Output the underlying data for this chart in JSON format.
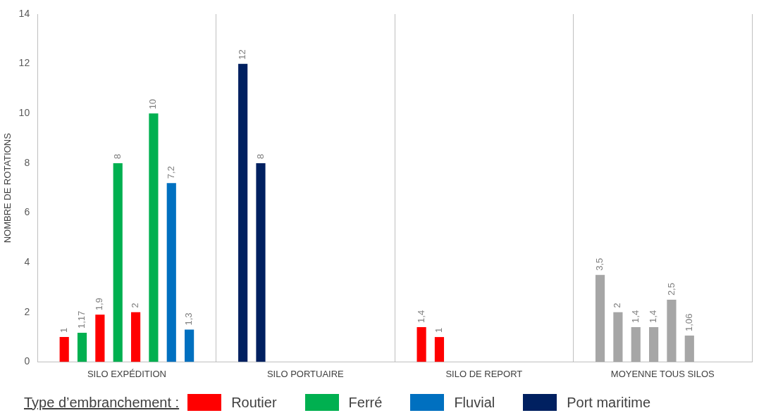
{
  "chart_data": {
    "type": "bar",
    "ylabel": "NOMBRE DE ROTATIONS",
    "legend_title": "Type d’embranchement :",
    "categories": [
      "SILO EXPÉDITION",
      "SILO PORTUAIRE",
      "SILO DE REPORT",
      "MOYENNE TOUS SILOS"
    ],
    "series": [
      {
        "values": [
          1,
          12,
          1.4,
          3.5
        ],
        "colors": [
          "#ff0000",
          "#002060",
          "#ff0000",
          "#a6a6a6"
        ],
        "value_labels": [
          "1",
          "12",
          "1,4",
          "3,5"
        ]
      },
      {
        "values": [
          1.17,
          8,
          1,
          2
        ],
        "colors": [
          "#00b050",
          "#002060",
          "#ff0000",
          "#a6a6a6"
        ],
        "value_labels": [
          "1,17",
          "8",
          "1",
          "2"
        ]
      },
      {
        "values": [
          1.9,
          null,
          null,
          1.4
        ],
        "colors": [
          "#ff0000",
          null,
          null,
          "#a6a6a6"
        ],
        "value_labels": [
          "1,9",
          null,
          null,
          "1,4"
        ]
      },
      {
        "values": [
          8,
          null,
          null,
          1.4
        ],
        "colors": [
          "#00b050",
          null,
          null,
          "#a6a6a6"
        ],
        "value_labels": [
          "8",
          null,
          null,
          "1,4"
        ]
      },
      {
        "values": [
          2,
          null,
          null,
          2.5
        ],
        "colors": [
          "#ff0000",
          null,
          null,
          "#a6a6a6"
        ],
        "value_labels": [
          "2",
          null,
          null,
          "2,5"
        ]
      },
      {
        "values": [
          10,
          null,
          null,
          1.06
        ],
        "colors": [
          "#00b050",
          null,
          null,
          "#a6a6a6"
        ],
        "value_labels": [
          "10",
          null,
          null,
          "1,06"
        ]
      },
      {
        "values": [
          7.2,
          null,
          null,
          null
        ],
        "colors": [
          "#0070c0",
          null,
          null,
          null
        ],
        "value_labels": [
          "7,2",
          null,
          null,
          null
        ]
      },
      {
        "values": [
          1.3,
          null,
          null,
          null
        ],
        "colors": [
          "#0070c0",
          null,
          null,
          null
        ],
        "value_labels": [
          "1,3",
          null,
          null,
          null
        ]
      },
      {
        "name": "Routier",
        "color": "#ff0000",
        "values": [
          null,
          null,
          null,
          null
        ]
      },
      {
        "name": "Ferré",
        "color": "#00b050",
        "values": [
          null,
          null,
          null,
          null
        ]
      },
      {
        "name": "Fluvial",
        "color": "#0070c0",
        "values": [
          null,
          null,
          null,
          null
        ]
      },
      {
        "name": "Port maritime",
        "color": "#002060",
        "values": [
          null,
          null,
          null,
          null
        ]
      }
    ],
    "ylim": [
      0,
      14
    ],
    "yticks": [
      0,
      2,
      4,
      6,
      8,
      10,
      12,
      14
    ],
    "grid": "x",
    "legend": "bottom"
  }
}
